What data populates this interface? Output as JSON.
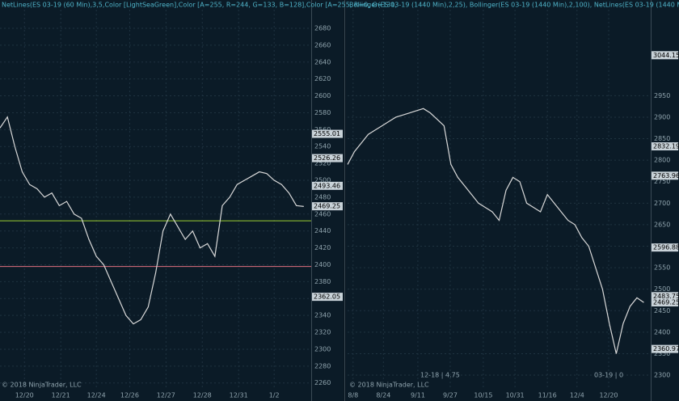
{
  "chart_data": [
    {
      "type": "line",
      "title": "NetLines(ES 03-19 (60 Min),3,5,Color [LightSeaGreen],Color [A=255, R=244, G=133, B=128],Color [A=255, R=0, G=131,",
      "footer": "© 2018 NinjaTrader, LLC",
      "x": [
        0,
        1,
        2,
        3,
        4,
        5,
        6,
        7,
        8,
        9,
        10,
        11,
        12,
        13,
        14,
        15,
        16,
        17,
        18,
        19,
        20,
        21,
        22,
        23,
        24,
        25,
        26,
        27,
        28,
        29,
        30,
        31,
        32,
        33,
        34,
        35,
        36,
        37,
        38,
        39,
        40,
        41
      ],
      "series": [
        {
          "color": "#d9d9d9",
          "values": [
            2562,
            2575,
            2540,
            2510,
            2495,
            2490,
            2480,
            2485,
            2470,
            2475,
            2460,
            2455,
            2430,
            2410,
            2400,
            2380,
            2360,
            2340,
            2330,
            2335,
            2350,
            2390,
            2440,
            2460,
            2445,
            2430,
            2440,
            2420,
            2425,
            2410,
            2470,
            2480,
            2495,
            2500,
            2505,
            2510,
            2508,
            2500,
            2495,
            2485,
            2470,
            2469
          ]
        }
      ],
      "xlim": [
        0,
        42
      ],
      "xticks": [
        {
          "value": 3.3,
          "label": "12/20"
        },
        {
          "value": 8.2,
          "label": "12/21"
        },
        {
          "value": 13,
          "label": "12/24"
        },
        {
          "value": 17.5,
          "label": "12/26"
        },
        {
          "value": 22.4,
          "label": "12/27"
        },
        {
          "value": 27.3,
          "label": "12/28"
        },
        {
          "value": 32.2,
          "label": "12/31"
        },
        {
          "value": 37,
          "label": "1/2"
        }
      ],
      "ylim": [
        2254,
        2702
      ],
      "yticks": [
        2260,
        2280,
        2300,
        2320,
        2340,
        2360,
        2380,
        2400,
        2420,
        2440,
        2460,
        2480,
        2500,
        2520,
        2540,
        2560,
        2580,
        2600,
        2620,
        2640,
        2660,
        2680
      ],
      "hlines": [
        {
          "value": 2452,
          "color": "#9acd32"
        },
        {
          "value": 2398,
          "color": "#e07080"
        }
      ],
      "price_labels": [
        {
          "value": 2555.01,
          "label": "2555.01"
        },
        {
          "value": 2526.26,
          "label": "2526.26"
        },
        {
          "value": 2493.46,
          "label": "2493.46"
        },
        {
          "value": 2469.25,
          "label": "2469.25"
        },
        {
          "value": 2362.05,
          "label": "2362.05"
        }
      ]
    },
    {
      "type": "line",
      "title": "Bollinger(ES 03-19 (1440 Min),2,25), Bollinger(ES 03-19 (1440 Min),2,100), NetLines(ES 03-19 (1440 Min),3,5,Color [",
      "footer": "© 2018 NinjaTrader, LLC",
      "annotations": [
        "12-18 | 4.75",
        "03-19 | 0"
      ],
      "x": [
        0,
        1,
        2,
        3,
        4,
        5,
        6,
        7,
        8,
        9,
        10,
        11,
        12,
        13,
        14,
        15,
        16,
        17,
        18,
        19,
        20,
        21,
        22,
        23,
        24,
        25,
        26,
        27,
        28,
        29,
        30,
        31,
        32,
        33,
        34,
        35,
        36,
        37,
        38,
        39,
        40,
        41,
        42,
        43
      ],
      "series": [
        {
          "color": "#d9d9d9",
          "values": [
            2790,
            2820,
            2840,
            2860,
            2870,
            2880,
            2890,
            2900,
            2905,
            2910,
            2915,
            2920,
            2910,
            2895,
            2880,
            2790,
            2760,
            2740,
            2720,
            2700,
            2690,
            2680,
            2660,
            2730,
            2760,
            2750,
            2700,
            2690,
            2680,
            2720,
            2700,
            2680,
            2660,
            2650,
            2620,
            2600,
            2550,
            2500,
            2420,
            2350,
            2420,
            2460,
            2480,
            2469
          ]
        }
      ],
      "xlim": [
        0,
        44
      ],
      "xticks": [
        {
          "value": 0.8,
          "label": "8/8"
        },
        {
          "value": 5.2,
          "label": "8/24"
        },
        {
          "value": 10.2,
          "label": "9/11"
        },
        {
          "value": 14.9,
          "label": "9/27"
        },
        {
          "value": 19.7,
          "label": "10/15"
        },
        {
          "value": 24.3,
          "label": "10/31"
        },
        {
          "value": 29,
          "label": "11/16"
        },
        {
          "value": 33.3,
          "label": "12/4"
        },
        {
          "value": 37.9,
          "label": "12/20"
        }
      ],
      "ylim": [
        2270,
        3150
      ],
      "yticks": [
        2300,
        2350,
        2400,
        2450,
        2500,
        2550,
        2600,
        2650,
        2700,
        2750,
        2800,
        2850,
        2900,
        2950
      ],
      "price_labels": [
        {
          "value": 3044.15,
          "label": "3044.15"
        },
        {
          "value": 2832.19,
          "label": "2832.19"
        },
        {
          "value": 2763.96,
          "label": "2763.96"
        },
        {
          "value": 2596.88,
          "label": "2596.88"
        },
        {
          "value": 2483.75,
          "label": "2483.75"
        },
        {
          "value": 2469.25,
          "label": "2469.25"
        },
        {
          "value": 2360.97,
          "label": "2360.97"
        }
      ]
    }
  ]
}
